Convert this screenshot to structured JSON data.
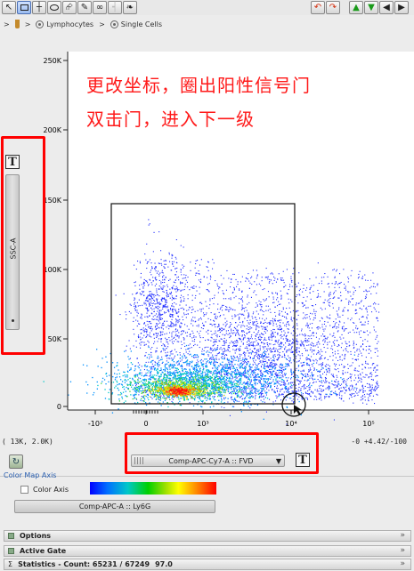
{
  "toolbar": {
    "tools": [
      {
        "icon": "pointer-icon"
      },
      {
        "icon": "rectangle-gate-icon"
      },
      {
        "icon": "quadrant-gate-icon"
      },
      {
        "icon": "ellipse-gate-icon"
      },
      {
        "icon": "polygon-gate-icon"
      },
      {
        "icon": "freehand-gate-icon"
      },
      {
        "icon": "link-icon"
      },
      {
        "icon": "spider-gate-icon"
      },
      {
        "icon": "tri-gate-icon"
      }
    ],
    "nav": [
      {
        "icon": "undo-icon"
      },
      {
        "icon": "redo-icon"
      },
      {
        "icon": "up-arrow-icon"
      },
      {
        "icon": "down-arrow-icon"
      },
      {
        "icon": "left-arrow-icon"
      },
      {
        "icon": "right-arrow-icon"
      }
    ]
  },
  "breadcrumb": {
    "items": [
      "Lymphocytes",
      "Single Cells"
    ],
    "separator": ">"
  },
  "annotation": {
    "line1": "更改坐标，圈出阳性信号门",
    "line2": "双击门，进入下一级",
    "color": "#ff1a1a"
  },
  "plot": {
    "y_axis_label": "SSC-A",
    "y_ticks": [
      "250K",
      "200K",
      "150K",
      "100K",
      "50K",
      "0"
    ],
    "x_ticks": [
      "-10³",
      "0",
      "10³",
      "10⁴",
      "10⁵"
    ],
    "x_axis_label": "Comp-APC-Cy7-A :: FVD",
    "t_button_label": "T",
    "cursor_coordinates": "( 13K, 2.0K)",
    "axis_range": "-0 +4.42/-100",
    "highlight_color": "#ff0000"
  },
  "chart_data": {
    "type": "scatter",
    "x_axis": "Comp-APC-Cy7-A :: FVD",
    "y_axis": "SSC-A",
    "x_scale": "biexponential",
    "ylim": [
      0,
      262144
    ],
    "gate": {
      "type": "rectangle",
      "x_range": [
        -350,
        10000
      ],
      "y_range": [
        0,
        148000
      ]
    }
  },
  "color_map": {
    "section_title": "Color Map Axis",
    "checkbox_label": "Color Axis",
    "checkbox_checked": false,
    "parameter": "Comp-APC-A :: Ly6G"
  },
  "panels": [
    {
      "label": "Options",
      "icon": "options-icon"
    },
    {
      "label": "Active Gate",
      "icon": "gate-icon"
    },
    {
      "label": "Statistics - Count: 65231 / 67249",
      "value": "97.0",
      "icon": "sigma-icon"
    }
  ]
}
